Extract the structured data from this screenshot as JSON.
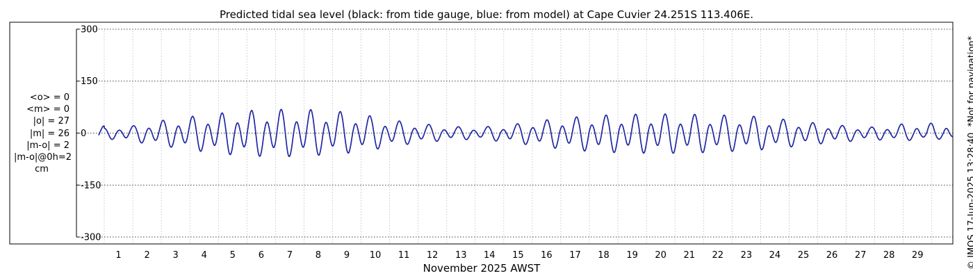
{
  "chart_data": {
    "type": "line",
    "title": "Predicted tidal sea level (black: from tide gauge, blue: from model) at Cape Cuvier 24.251S 113.406E.",
    "xlabel": "November 2025 AWST",
    "ylabel": "",
    "x_ticks": [
      "1",
      "2",
      "3",
      "4",
      "5",
      "6",
      "7",
      "8",
      "9",
      "10",
      "11",
      "12",
      "13",
      "14",
      "15",
      "16",
      "17",
      "18",
      "19",
      "20",
      "21",
      "22",
      "23",
      "24",
      "25",
      "26",
      "27",
      "28",
      "29"
    ],
    "ylim": [
      -320,
      320
    ],
    "y_ticks": [
      300,
      150,
      0,
      -150,
      -300
    ],
    "y_tick_labels": [
      "300",
      "150",
      "0",
      "-150",
      "-300"
    ],
    "grid": true,
    "series": [
      {
        "color": "#000000",
        "x": [
          "2025-11-01",
          "2025-11-02",
          "2025-11-03",
          "2025-11-04",
          "2025-11-05",
          "2025-11-06",
          "2025-11-07",
          "2025-11-08",
          "2025-11-09",
          "2025-11-10",
          "2025-11-11",
          "2025-11-12",
          "2025-11-13",
          "2025-11-14",
          "2025-11-15",
          "2025-11-16",
          "2025-11-17",
          "2025-11-18",
          "2025-11-19",
          "2025-11-20",
          "2025-11-21",
          "2025-11-22",
          "2025-11-23",
          "2025-11-24",
          "2025-11-25",
          "2025-11-26",
          "2025-11-27",
          "2025-11-28",
          "2025-11-29",
          "2025-11-30"
        ],
        "daily_high": [
          15,
          22,
          38,
          50,
          60,
          68,
          72,
          72,
          68,
          58,
          40,
          30,
          20,
          18,
          22,
          35,
          45,
          52,
          56,
          58,
          58,
          56,
          54,
          50,
          40,
          30,
          22,
          18,
          28,
          30
        ],
        "daily_low": [
          -18,
          -28,
          -42,
          -55,
          -68,
          -75,
          -78,
          -76,
          -70,
          -62,
          -45,
          -32,
          -24,
          -20,
          -28,
          -40,
          -52,
          -60,
          -64,
          -66,
          -66,
          -64,
          -60,
          -55,
          -46,
          -36,
          -28,
          -22,
          -25,
          -20
        ]
      },
      {
        "color": "#1f2ad6",
        "x": [
          "2025-11-01",
          "2025-11-02",
          "2025-11-03",
          "2025-11-04",
          "2025-11-05",
          "2025-11-06",
          "2025-11-07",
          "2025-11-08",
          "2025-11-09",
          "2025-11-10",
          "2025-11-11",
          "2025-11-12",
          "2025-11-13",
          "2025-11-14",
          "2025-11-15",
          "2025-11-16",
          "2025-11-17",
          "2025-11-18",
          "2025-11-19",
          "2025-11-20",
          "2025-11-21",
          "2025-11-22",
          "2025-11-23",
          "2025-11-24",
          "2025-11-25",
          "2025-11-26",
          "2025-11-27",
          "2025-11-28",
          "2025-11-29",
          "2025-11-30"
        ],
        "daily_high": [
          15,
          22,
          38,
          50,
          60,
          68,
          72,
          72,
          68,
          58,
          40,
          30,
          20,
          18,
          22,
          35,
          45,
          52,
          56,
          58,
          58,
          56,
          54,
          50,
          40,
          30,
          22,
          18,
          28,
          30
        ],
        "daily_low": [
          -18,
          -28,
          -42,
          -55,
          -68,
          -75,
          -78,
          -76,
          -70,
          -62,
          -45,
          -32,
          -24,
          -20,
          -28,
          -40,
          -52,
          -60,
          -64,
          -66,
          -66,
          -64,
          -60,
          -55,
          -46,
          -36,
          -28,
          -22,
          -25,
          -20
        ]
      }
    ]
  },
  "stats": {
    "lines": [
      "<o> = 0",
      "<m> = 0",
      "|o| = 27",
      "|m| = 26",
      "|m-o| = 2",
      "|m-o|@0h=2"
    ],
    "unit": "cm"
  },
  "credit": "© IMOS 17-Jun-2025 13:28:40. *Not for navigation*"
}
